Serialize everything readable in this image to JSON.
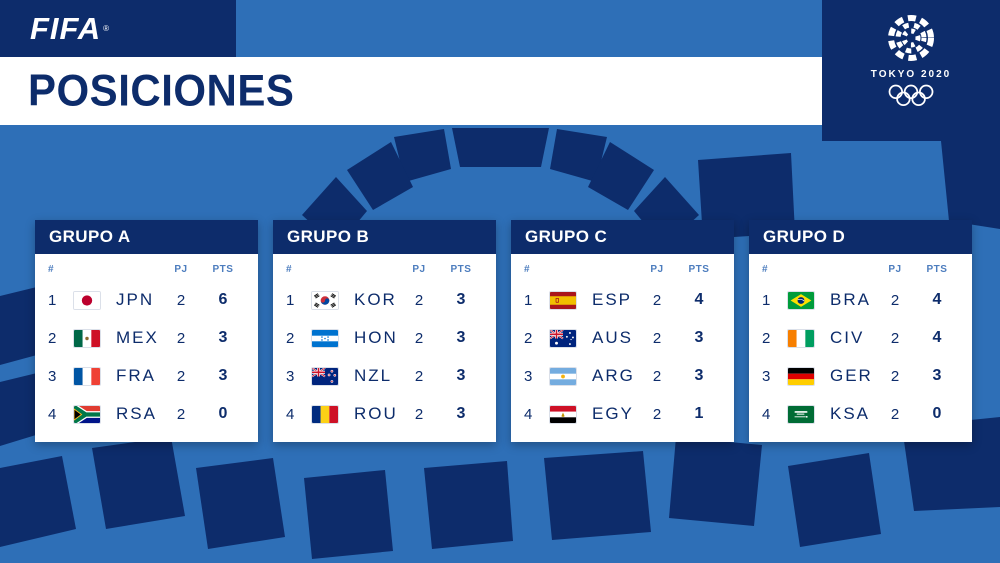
{
  "colors": {
    "navy": "#0D2C6B",
    "background_blue": "#2E6FB7",
    "white": "#FFFFFF",
    "column_label_blue": "#4D7DBE"
  },
  "header": {
    "fifa_logo": "FIFA",
    "fifa_reg": "®",
    "page_title": "POSICIONES",
    "emblem_wordmark": "TOKYO 2020"
  },
  "table_columns": {
    "pos": "#",
    "pj": "PJ",
    "pts": "PTS"
  },
  "groups": [
    {
      "name": "GRUPO A",
      "rows": [
        {
          "pos": 1,
          "flag": "jpn",
          "code": "JPN",
          "pj": 2,
          "pts": 6
        },
        {
          "pos": 2,
          "flag": "mex",
          "code": "MEX",
          "pj": 2,
          "pts": 3
        },
        {
          "pos": 3,
          "flag": "fra",
          "code": "FRA",
          "pj": 2,
          "pts": 3
        },
        {
          "pos": 4,
          "flag": "rsa",
          "code": "RSA",
          "pj": 2,
          "pts": 0
        }
      ]
    },
    {
      "name": "GRUPO B",
      "rows": [
        {
          "pos": 1,
          "flag": "kor",
          "code": "KOR",
          "pj": 2,
          "pts": 3
        },
        {
          "pos": 2,
          "flag": "hon",
          "code": "HON",
          "pj": 2,
          "pts": 3
        },
        {
          "pos": 3,
          "flag": "nzl",
          "code": "NZL",
          "pj": 2,
          "pts": 3
        },
        {
          "pos": 4,
          "flag": "rou",
          "code": "ROU",
          "pj": 2,
          "pts": 3
        }
      ]
    },
    {
      "name": "GRUPO C",
      "rows": [
        {
          "pos": 1,
          "flag": "esp",
          "code": "ESP",
          "pj": 2,
          "pts": 4
        },
        {
          "pos": 2,
          "flag": "aus",
          "code": "AUS",
          "pj": 2,
          "pts": 3
        },
        {
          "pos": 3,
          "flag": "arg",
          "code": "ARG",
          "pj": 2,
          "pts": 3
        },
        {
          "pos": 4,
          "flag": "egy",
          "code": "EGY",
          "pj": 2,
          "pts": 1
        }
      ]
    },
    {
      "name": "GRUPO D",
      "rows": [
        {
          "pos": 1,
          "flag": "bra",
          "code": "BRA",
          "pj": 2,
          "pts": 4
        },
        {
          "pos": 2,
          "flag": "civ",
          "code": "CIV",
          "pj": 2,
          "pts": 4
        },
        {
          "pos": 3,
          "flag": "ger",
          "code": "GER",
          "pj": 2,
          "pts": 3
        },
        {
          "pos": 4,
          "flag": "ksa",
          "code": "KSA",
          "pj": 2,
          "pts": 0
        }
      ]
    }
  ]
}
